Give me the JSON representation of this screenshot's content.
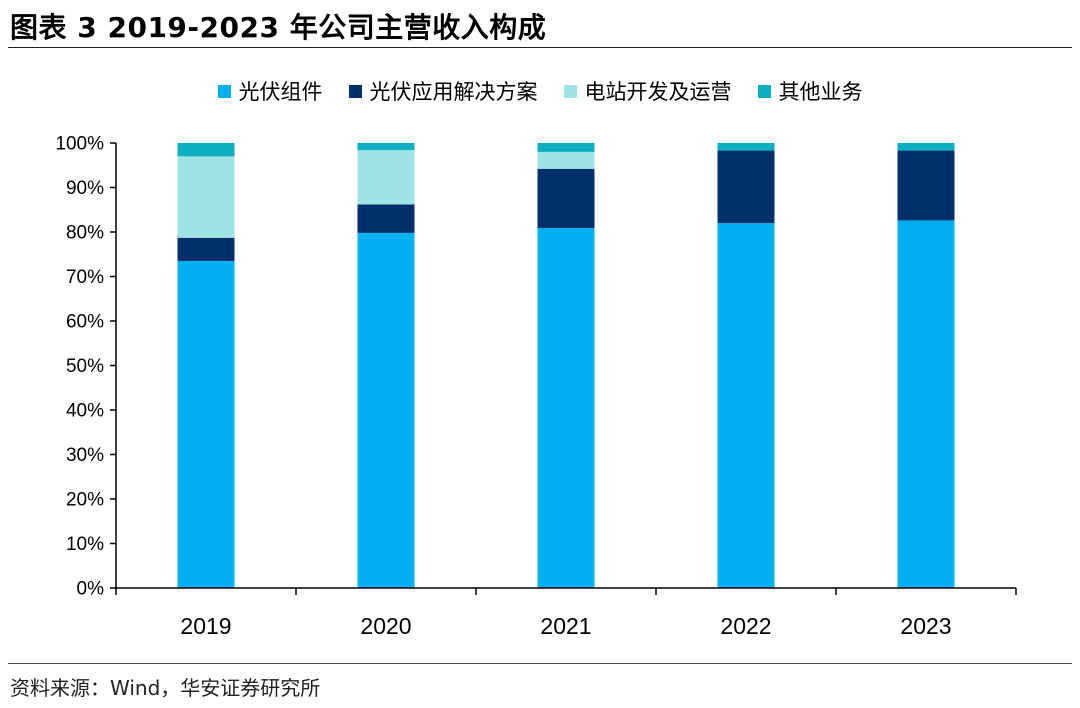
{
  "title": "图表 3 2019-2023 年公司主营收入构成",
  "source": "资料来源：Wind，华安证券研究所",
  "chart_data": {
    "type": "bar",
    "stacked": true,
    "categories": [
      "2019",
      "2020",
      "2021",
      "2022",
      "2023"
    ],
    "series": [
      {
        "name": "光伏组件",
        "color": "#00B0F0",
        "values": [
          73.5,
          79.8,
          80.9,
          82.0,
          82.6
        ]
      },
      {
        "name": "光伏应用解决方案",
        "color": "#002F6C",
        "values": [
          5.2,
          6.4,
          13.3,
          16.3,
          15.7
        ]
      },
      {
        "name": "电站开发及运营",
        "color": "#9EE3E6",
        "values": [
          18.3,
          12.2,
          3.8,
          0.0,
          0.0
        ]
      },
      {
        "name": "其他业务",
        "color": "#0BAFBF",
        "values": [
          3.0,
          1.6,
          2.0,
          1.7,
          1.7
        ]
      }
    ],
    "ylim": [
      0,
      100
    ],
    "yticks": [
      "0%",
      "10%",
      "20%",
      "30%",
      "40%",
      "50%",
      "60%",
      "70%",
      "80%",
      "90%",
      "100%"
    ],
    "legend_position": "top",
    "grid": false
  }
}
